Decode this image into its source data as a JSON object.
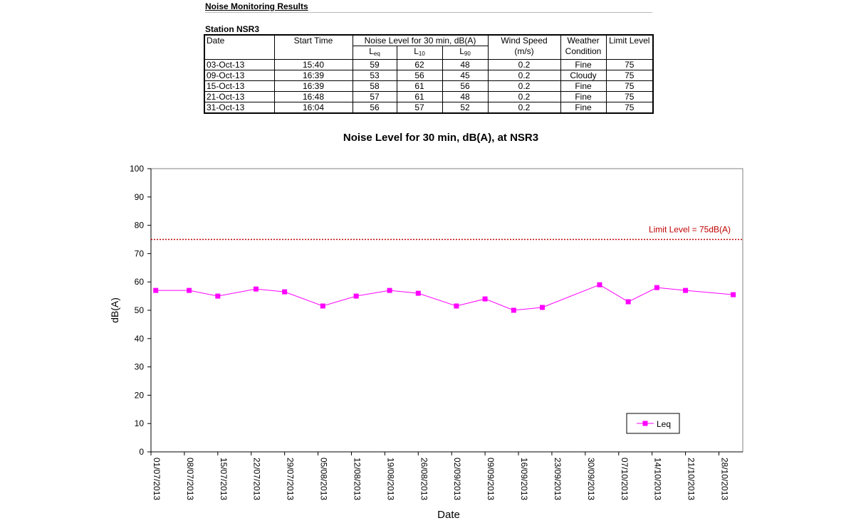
{
  "report": {
    "title": "Noise Monitoring Results",
    "station": "Station NSR3"
  },
  "table": {
    "headers": {
      "date": "Date",
      "start_time": "Start Time",
      "noise_level": "Noise Level for 30 min, dB(A)",
      "l_main": "L",
      "leq_sub": "eq",
      "l10_sub": "10",
      "l90_sub": "90",
      "wind_speed": "Wind Speed",
      "wind_unit": "(m/s)",
      "weather": "Weather",
      "weather2": "Condition",
      "limit": "Limit Level"
    },
    "rows": [
      {
        "date": "03-Oct-13",
        "time": "15:40",
        "leq": "59",
        "l10": "62",
        "l90": "48",
        "wind": "0.2",
        "weather": "Fine",
        "limit": "75"
      },
      {
        "date": "09-Oct-13",
        "time": "16:39",
        "leq": "53",
        "l10": "56",
        "l90": "45",
        "wind": "0.2",
        "weather": "Cloudy",
        "limit": "75"
      },
      {
        "date": "15-Oct-13",
        "time": "16:39",
        "leq": "58",
        "l10": "61",
        "l90": "56",
        "wind": "0.2",
        "weather": "Fine",
        "limit": "75"
      },
      {
        "date": "21-Oct-13",
        "time": "16:48",
        "leq": "57",
        "l10": "61",
        "l90": "48",
        "wind": "0.2",
        "weather": "Fine",
        "limit": "75"
      },
      {
        "date": "31-Oct-13",
        "time": "16:04",
        "leq": "56",
        "l10": "57",
        "l90": "52",
        "wind": "0.2",
        "weather": "Fine",
        "limit": "75"
      }
    ]
  },
  "chart_data": {
    "type": "line",
    "title": "Noise Level for 30 min, dB(A), at NSR3",
    "xlabel": "Date",
    "ylabel": "dB(A)",
    "ylim": [
      0,
      100
    ],
    "yticks": [
      0,
      10,
      20,
      30,
      40,
      50,
      60,
      70,
      80,
      90,
      100
    ],
    "xlim": [
      "2013-07-01",
      "2013-11-02"
    ],
    "xticks": [
      "01/07/2013",
      "08/07/2013",
      "15/07/2013",
      "22/07/2013",
      "29/07/2013",
      "05/08/2013",
      "12/08/2013",
      "19/08/2013",
      "26/08/2013",
      "02/09/2013",
      "09/09/2013",
      "16/09/2013",
      "23/09/2013",
      "30/09/2013",
      "07/10/2013",
      "14/10/2013",
      "21/10/2013",
      "28/10/2013"
    ],
    "grid": false,
    "legend_position": "bottom-right",
    "series": [
      {
        "name": "Leq",
        "color": "#ff00ff",
        "marker": "square",
        "x": [
          "2013-07-02",
          "2013-07-09",
          "2013-07-15",
          "2013-07-23",
          "2013-07-29",
          "2013-08-06",
          "2013-08-13",
          "2013-08-20",
          "2013-08-26",
          "2013-09-03",
          "2013-09-09",
          "2013-09-15",
          "2013-09-21",
          "2013-10-03",
          "2013-10-09",
          "2013-10-15",
          "2013-10-21",
          "2013-10-31"
        ],
        "y": [
          57,
          57,
          55,
          57.5,
          56.5,
          51.5,
          55,
          57,
          56,
          51.5,
          54,
          50,
          51,
          59,
          53,
          58,
          57,
          55.5
        ]
      }
    ],
    "reference_lines": [
      {
        "label": "Limit Level  = 75dB(A)",
        "y": 75,
        "color": "#c00000",
        "style": "dotted"
      }
    ]
  }
}
